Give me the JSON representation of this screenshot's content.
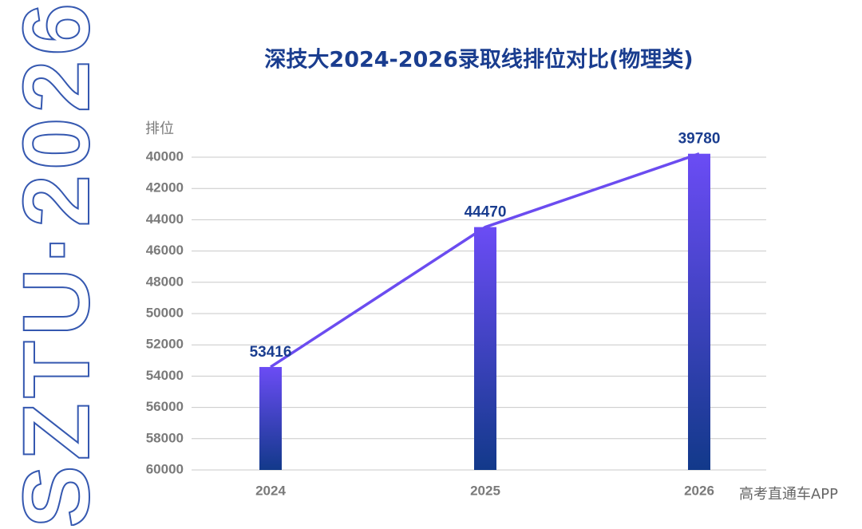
{
  "chart_data": {
    "type": "bar-line",
    "title": "深技大2024-2026录取线排位对比(物理类)",
    "y_label": "排位",
    "categories": [
      "2024",
      "2025",
      "2026"
    ],
    "values": [
      53416,
      44470,
      39780
    ],
    "bar_gradient": [
      "#6b4cf5",
      "#12398a"
    ],
    "line_color": "#6b4cf0",
    "ylim": [
      60000,
      40000
    ],
    "yticks": [
      40000,
      42000,
      44000,
      46000,
      48000,
      50000,
      52000,
      54000,
      56000,
      58000,
      60000
    ],
    "grid": true,
    "side_text": "SZTU·2026",
    "watermark": "高考直通车APP"
  }
}
